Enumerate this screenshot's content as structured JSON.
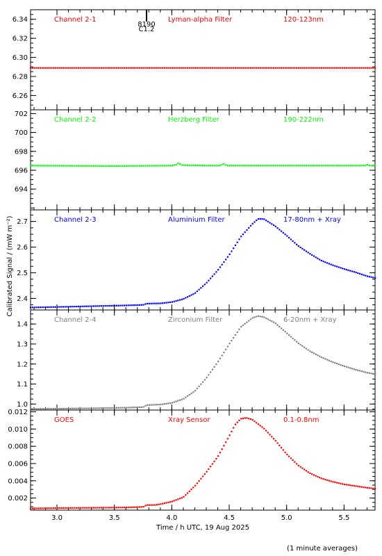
{
  "page": {
    "xaxis_title": "Time / h UTC, 19 Aug 2025",
    "yaxis_title": "Calibrated Signal / (mW m⁻²)",
    "footnote": "(1 minute averages)"
  },
  "flare_marker": {
    "x": 3.78,
    "label_top": "8190",
    "label_bottom": "C1.2"
  },
  "chart_data": [
    {
      "type": "scatter",
      "color": "#ff0000",
      "labels": [
        "Channel 2-1",
        "Lyman-alpha Filter",
        "120-123nm"
      ],
      "xlim": [
        2.77,
        5.77
      ],
      "ylim": [
        6.245,
        6.35
      ],
      "yticks": [
        6.26,
        6.28,
        6.3,
        6.32,
        6.34
      ],
      "xticks": [
        3.0,
        3.5,
        4.0,
        4.5,
        5.0,
        5.5
      ],
      "series": [
        {
          "x": [
            2.77,
            5.77
          ],
          "y": [
            6.289,
            6.289
          ]
        }
      ]
    },
    {
      "type": "scatter",
      "color": "#00ff00",
      "labels": [
        "Channel 2-2",
        "Herzberg Filter",
        "190-222nm"
      ],
      "xlim": [
        2.77,
        5.77
      ],
      "ylim": [
        691.8,
        702.4
      ],
      "yticks": [
        694,
        696,
        698,
        700,
        702
      ],
      "xticks": [
        3.0,
        3.5,
        4.0,
        4.5,
        5.0,
        5.5
      ],
      "series": [
        {
          "x": [
            2.77,
            3.5,
            4.0,
            4.04,
            4.06,
            4.08,
            4.3,
            4.42,
            4.45,
            4.48,
            5.0,
            5.68,
            5.7,
            5.72,
            5.77
          ],
          "y": [
            696.5,
            696.45,
            696.5,
            696.6,
            696.8,
            696.55,
            696.5,
            696.5,
            696.7,
            696.5,
            696.5,
            696.5,
            696.6,
            696.5,
            696.5
          ]
        }
      ]
    },
    {
      "type": "scatter",
      "color": "#0000ff",
      "labels": [
        "Channel 2-3",
        "Aluminium Filter",
        "17-80nm + Xray"
      ],
      "xlim": [
        2.77,
        5.77
      ],
      "ylim": [
        2.355,
        2.745
      ],
      "yticks": [
        2.4,
        2.5,
        2.6,
        2.7
      ],
      "xticks": [
        3.0,
        3.5,
        4.0,
        4.5,
        5.0,
        5.5
      ],
      "series": [
        {
          "x": [
            2.77,
            3.0,
            3.3,
            3.6,
            3.75,
            3.78,
            3.9,
            4.0,
            4.1,
            4.2,
            4.3,
            4.4,
            4.5,
            4.6,
            4.7,
            4.75,
            4.8,
            4.9,
            5.0,
            5.1,
            5.2,
            5.3,
            5.4,
            5.5,
            5.6,
            5.7,
            5.77
          ],
          "y": [
            2.365,
            2.367,
            2.37,
            2.373,
            2.375,
            2.38,
            2.381,
            2.386,
            2.398,
            2.42,
            2.46,
            2.51,
            2.57,
            2.64,
            2.69,
            2.71,
            2.71,
            2.682,
            2.645,
            2.605,
            2.575,
            2.548,
            2.53,
            2.515,
            2.502,
            2.487,
            2.48
          ]
        }
      ]
    },
    {
      "type": "scatter",
      "color": "#808080",
      "labels": [
        "Channel 2-4",
        "Zirconium Filter",
        "6-20nm + Xray"
      ],
      "xlim": [
        2.77,
        5.77
      ],
      "ylim": [
        0.97,
        1.47
      ],
      "yticks": [
        1.0,
        1.1,
        1.2,
        1.3,
        1.4
      ],
      "xticks": [
        3.0,
        3.5,
        4.0,
        4.5,
        5.0,
        5.5
      ],
      "series": [
        {
          "x": [
            2.77,
            3.0,
            3.3,
            3.6,
            3.75,
            3.78,
            3.9,
            4.0,
            4.1,
            4.2,
            4.3,
            4.4,
            4.5,
            4.6,
            4.7,
            4.75,
            4.8,
            4.9,
            5.0,
            5.1,
            5.2,
            5.3,
            5.4,
            5.5,
            5.6,
            5.7,
            5.77
          ],
          "y": [
            0.976,
            0.977,
            0.979,
            0.982,
            0.985,
            0.995,
            0.998,
            1.006,
            1.026,
            1.065,
            1.13,
            1.21,
            1.3,
            1.385,
            1.43,
            1.44,
            1.435,
            1.405,
            1.355,
            1.305,
            1.265,
            1.235,
            1.21,
            1.19,
            1.172,
            1.157,
            1.15
          ]
        }
      ]
    },
    {
      "type": "scatter",
      "color": "#ff0000",
      "labels": [
        "GOES",
        "Xray Sensor",
        "0.1-0.8nm"
      ],
      "xlim": [
        2.77,
        5.77
      ],
      "ylim": [
        0.0006,
        0.0122
      ],
      "yticks": [
        0.002,
        0.004,
        0.006,
        0.008,
        0.01,
        0.012
      ],
      "xticks": [
        3.0,
        3.5,
        4.0,
        4.5,
        5.0,
        5.5
      ],
      "series": [
        {
          "x": [
            2.77,
            3.0,
            3.3,
            3.6,
            3.75,
            3.78,
            3.85,
            3.9,
            4.0,
            4.1,
            4.2,
            4.3,
            4.4,
            4.5,
            4.55,
            4.6,
            4.65,
            4.7,
            4.8,
            4.9,
            5.0,
            5.1,
            5.2,
            5.3,
            5.4,
            5.5,
            5.6,
            5.7,
            5.77
          ],
          "y": [
            0.0008,
            0.00085,
            0.00088,
            0.00092,
            0.00098,
            0.0012,
            0.0012,
            0.0013,
            0.0016,
            0.0021,
            0.0034,
            0.005,
            0.0068,
            0.0092,
            0.0105,
            0.0112,
            0.0113,
            0.0111,
            0.0101,
            0.0087,
            0.0071,
            0.0058,
            0.0049,
            0.0043,
            0.0039,
            0.0036,
            0.0034,
            0.0032,
            0.0031
          ]
        }
      ]
    }
  ]
}
